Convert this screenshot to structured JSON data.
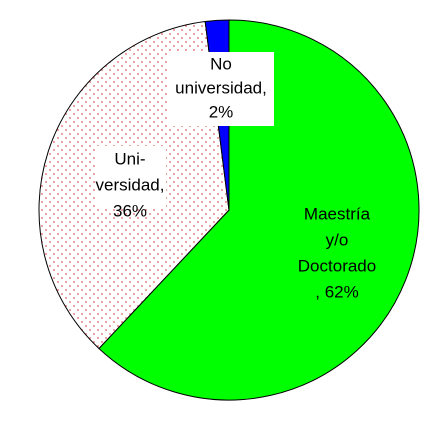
{
  "chart_data": {
    "type": "pie",
    "values": [
      62,
      36,
      2
    ],
    "value_labels": [
      [
        "Maestría",
        "y/o",
        "Doctorado",
        ", 62%"
      ],
      [
        "Uni-",
        "versidad,",
        "36%"
      ],
      [
        "No",
        "universidad,",
        "2%"
      ]
    ],
    "colors": [
      "#00ff00",
      "#e06060",
      "#0000ff"
    ],
    "patterns": [
      null,
      "dots",
      null
    ]
  }
}
